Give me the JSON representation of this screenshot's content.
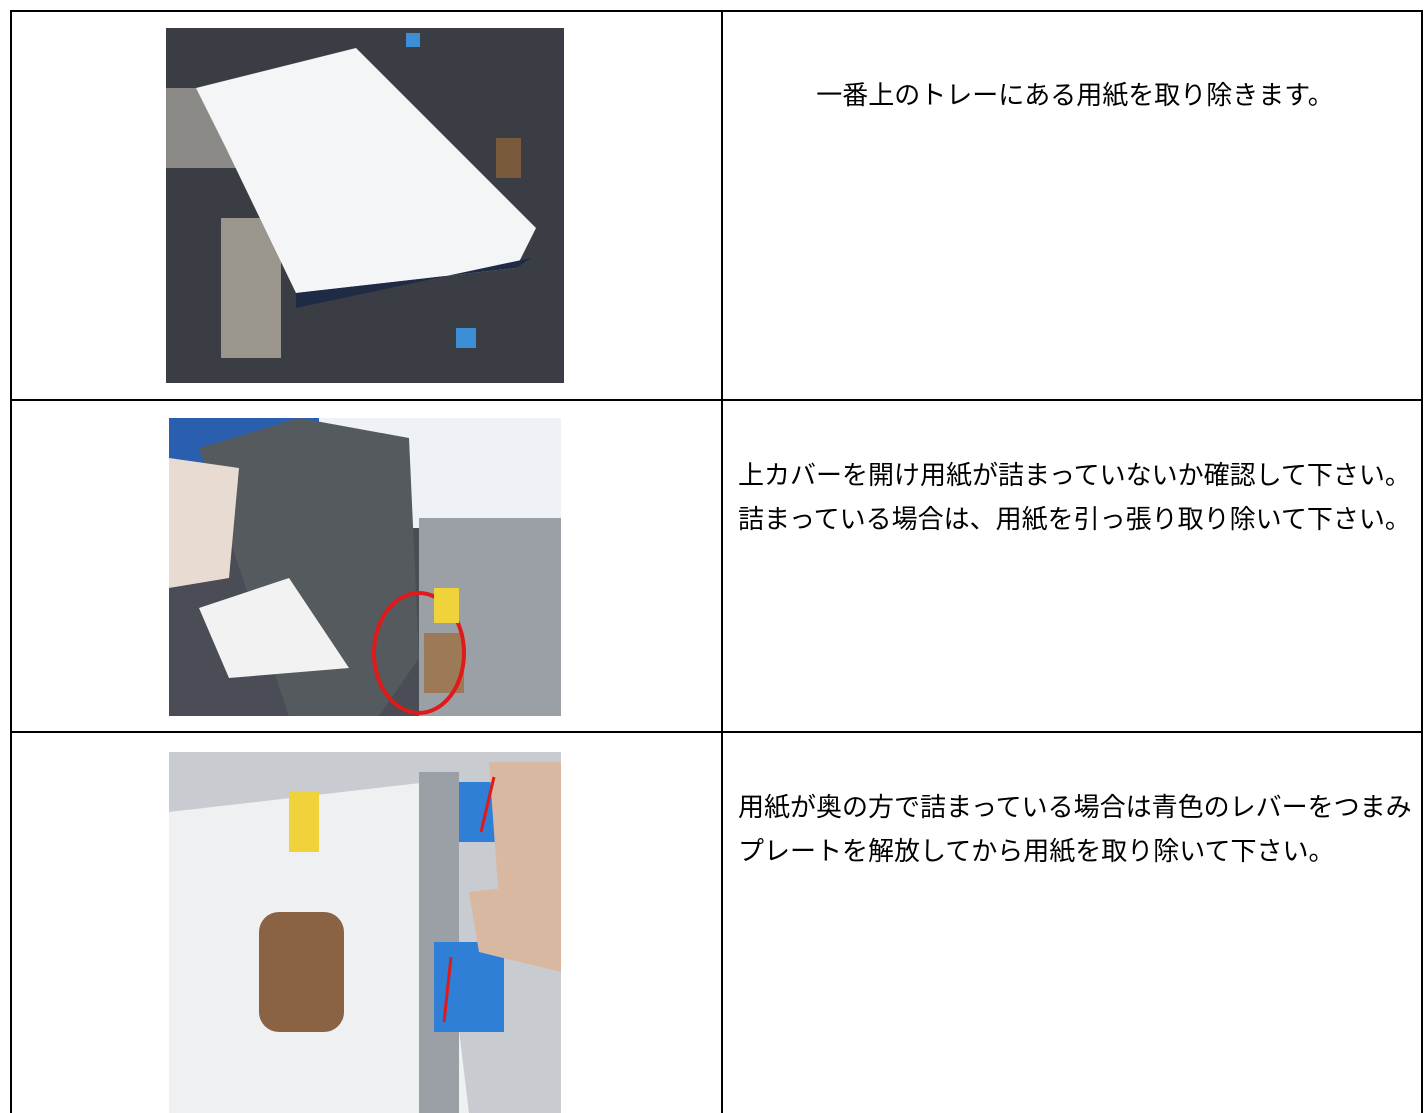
{
  "table": {
    "rows": [
      {
        "text": [
          "一番上のトレーにある用紙を取り除きます。"
        ]
      },
      {
        "text": [
          "上カバーを開け用紙が詰まっていないか確認して下さい。",
          "詰まっている場合は、用紙を引っ張り取り除いて下さい。"
        ]
      },
      {
        "text": [
          "用紙が奥の方で詰まっている場合は青色のレバーをつまみプレートを解放してから用紙を取り除いて下さい。"
        ]
      }
    ]
  }
}
